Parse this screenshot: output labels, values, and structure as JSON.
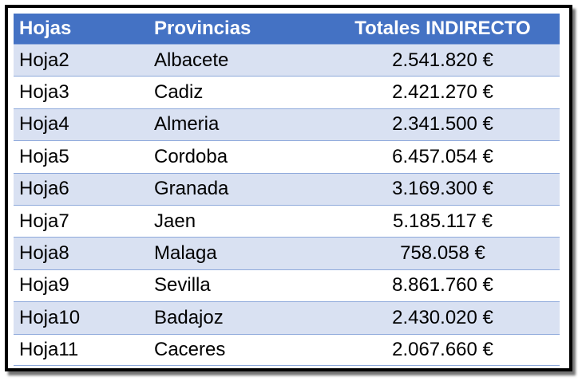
{
  "table": {
    "headers": [
      "Hojas",
      "Provincias",
      "Totales INDIRECTO"
    ],
    "rows": [
      {
        "hoja": "Hoja2",
        "provincia": "Albacete",
        "total": "2.541.820 €"
      },
      {
        "hoja": "Hoja3",
        "provincia": "Cadiz",
        "total": "2.421.270 €"
      },
      {
        "hoja": "Hoja4",
        "provincia": "Almeria",
        "total": "2.341.500 €"
      },
      {
        "hoja": "Hoja5",
        "provincia": "Cordoba",
        "total": "6.457.054 €"
      },
      {
        "hoja": "Hoja6",
        "provincia": "Granada",
        "total": "3.169.300 €"
      },
      {
        "hoja": "Hoja7",
        "provincia": "Jaen",
        "total": "5.185.117 €"
      },
      {
        "hoja": "Hoja8",
        "provincia": "Malaga",
        "total": "758.058 €"
      },
      {
        "hoja": "Hoja9",
        "provincia": "Sevilla",
        "total": "8.861.760 €"
      },
      {
        "hoja": "Hoja10",
        "provincia": "Badajoz",
        "total": "2.430.020 €"
      },
      {
        "hoja": "Hoja11",
        "provincia": "Caceres",
        "total": "2.067.660 €"
      }
    ]
  },
  "colors": {
    "header_bg": "#4472c4",
    "header_text": "#ffffff",
    "band_bg": "#d9e1f2",
    "row_border": "#8ea9db",
    "frame_border": "#000000"
  }
}
